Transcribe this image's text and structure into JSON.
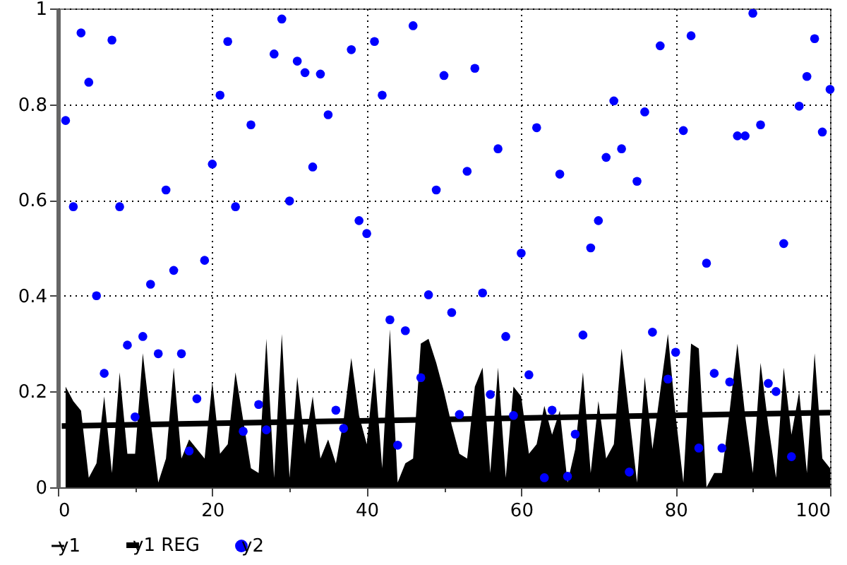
{
  "chart_data": {
    "type": "area",
    "xlim": [
      0,
      100
    ],
    "ylim": [
      0,
      1
    ],
    "xticks": [
      0,
      {
        "value": 10,
        "label": null
      },
      20,
      {
        "value": 30,
        "label": null
      },
      40,
      {
        "value": 50,
        "label": null
      },
      60,
      {
        "value": 70,
        "label": null
      },
      80,
      {
        "value": 90,
        "label": null
      },
      100
    ],
    "yticks": [
      0,
      0.2,
      0.4,
      0.6,
      0.8,
      1
    ],
    "grid": true,
    "legend": "bottom",
    "x": [
      1,
      2,
      3,
      4,
      5,
      6,
      7,
      8,
      9,
      10,
      11,
      12,
      13,
      14,
      15,
      16,
      17,
      18,
      19,
      20,
      21,
      22,
      23,
      24,
      25,
      26,
      27,
      28,
      29,
      30,
      31,
      32,
      33,
      34,
      35,
      36,
      37,
      38,
      39,
      40,
      41,
      42,
      43,
      44,
      45,
      46,
      47,
      48,
      49,
      50,
      51,
      52,
      53,
      54,
      55,
      56,
      57,
      58,
      59,
      60,
      61,
      62,
      63,
      64,
      65,
      66,
      67,
      68,
      69,
      70,
      71,
      72,
      73,
      74,
      75,
      76,
      77,
      78,
      79,
      80,
      81,
      82,
      83,
      84,
      85,
      86,
      87,
      88,
      89,
      90,
      91,
      92,
      93,
      94,
      95,
      96,
      97,
      98,
      99,
      100
    ],
    "series": [
      {
        "name": "y1",
        "color": "#000000",
        "values": [
          0.21,
          0.18,
          0.16,
          0.02,
          0.05,
          0.19,
          0.03,
          0.24,
          0.07,
          0.07,
          0.28,
          0.14,
          0.01,
          0.06,
          0.25,
          0.06,
          0.1,
          0.08,
          0.06,
          0.22,
          0.07,
          0.09,
          0.24,
          0.14,
          0.04,
          0.03,
          0.31,
          0.02,
          0.32,
          0.02,
          0.23,
          0.09,
          0.19,
          0.06,
          0.1,
          0.05,
          0.14,
          0.27,
          0.15,
          0.09,
          0.25,
          0.04,
          0.33,
          0.01,
          0.05,
          0.06,
          0.3,
          0.31,
          0.26,
          0.2,
          0.13,
          0.07,
          0.06,
          0.21,
          0.25,
          0.03,
          0.25,
          0.02,
          0.21,
          0.19,
          0.07,
          0.09,
          0.17,
          0.11,
          0.16,
          0.01,
          0.08,
          0.24,
          0.03,
          0.18,
          0.06,
          0.09,
          0.29,
          0.15,
          0.01,
          0.23,
          0.08,
          0.2,
          0.32,
          0.15,
          0.01,
          0.3,
          0.29,
          0.0,
          0.03,
          0.03,
          0.16,
          0.3,
          0.15,
          0.03,
          0.26,
          0.13,
          0.02,
          0.25,
          0.11,
          0.2,
          0.03,
          0.28,
          0.06,
          0.04
        ]
      },
      {
        "name": "y1 REG",
        "type": "line",
        "color": "#000000",
        "x": [
          0.5,
          100
        ],
        "values": [
          0.128,
          0.156
        ]
      },
      {
        "name": "y2",
        "type": "scatter",
        "marker": "circle",
        "color": "#0000ff",
        "values": [
          0.766,
          0.586,
          0.949,
          0.846,
          0.4,
          0.238,
          0.934,
          0.586,
          0.297,
          0.147,
          0.315,
          0.424,
          0.279,
          0.621,
          0.453,
          0.279,
          0.076,
          0.185,
          0.474,
          0.675,
          0.819,
          0.931,
          0.586,
          0.117,
          0.757,
          0.173,
          0.12,
          0.905,
          0.978,
          0.598,
          0.89,
          0.866,
          0.669,
          0.863,
          0.778,
          0.161,
          0.123,
          0.914,
          0.557,
          0.53,
          0.931,
          0.819,
          0.35,
          0.088,
          0.327,
          0.964,
          0.229,
          0.402,
          0.621,
          0.86,
          0.365,
          0.152,
          0.66,
          0.875,
          0.406,
          0.194,
          0.707,
          0.315,
          0.15,
          0.489,
          0.235,
          0.751,
          0.02,
          0.161,
          0.654,
          0.023,
          0.111,
          0.318,
          0.5,
          0.557,
          0.689,
          0.807,
          0.707,
          0.032,
          0.639,
          0.784,
          0.324,
          0.922,
          0.226,
          0.282,
          0.745,
          0.943,
          0.082,
          0.468,
          0.238,
          0.082,
          0.22,
          0.734,
          0.734,
          0.99,
          0.757,
          0.217,
          0.2,
          0.509,
          0.064,
          0.796,
          0.858,
          0.937,
          0.742,
          0.831
        ]
      }
    ]
  }
}
